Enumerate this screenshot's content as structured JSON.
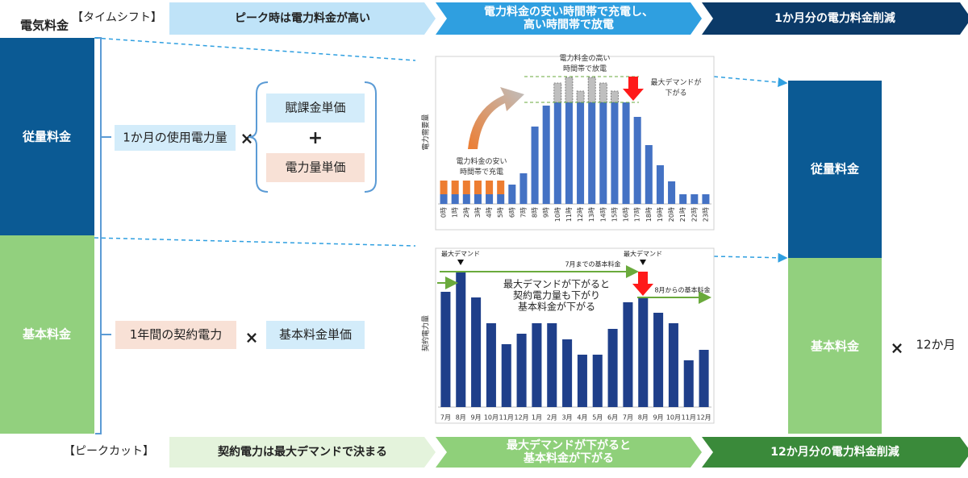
{
  "header": {
    "title": "電気料金",
    "timeshift": "【タイムシフト】",
    "peakcut": "【ピークカット】"
  },
  "timeshift_steps": [
    [
      "ピーク時は電力料金が高い"
    ],
    [
      "電力料金の安い時間帯で充電し、",
      "高い時間帯で放電"
    ],
    [
      "1か月分の電力料金削減"
    ]
  ],
  "peakcut_steps": [
    [
      "契約電力は最大デマンドで決まる"
    ],
    [
      "最大デマンドが下がると",
      "基本料金が下がる"
    ],
    [
      "12か月分の電力料金削減"
    ]
  ],
  "left": {
    "usage_charge": "従量料金",
    "basic_charge": "基本料金"
  },
  "formula": {
    "usage": "1か月の使用電力量",
    "times1": "×",
    "surcharge": "賦課金単価",
    "plus": "+",
    "energy_rate": "電力量単価",
    "contract": "1年間の契約電力",
    "times2": "×",
    "basic_rate": "基本料金単価"
  },
  "right": {
    "usage_charge": "従量料金",
    "basic_charge": "基本料金",
    "times": "×",
    "months": "12か月"
  },
  "chart_data": [
    {
      "type": "bar",
      "ylabel": "電力需要量",
      "categories": [
        "0時",
        "1時",
        "2時",
        "3時",
        "4時",
        "5時",
        "6時",
        "7時",
        "8時",
        "9時",
        "10時",
        "11時",
        "12時",
        "13時",
        "14時",
        "15時",
        "16時",
        "17時",
        "18時",
        "19時",
        "20時",
        "21時",
        "22時",
        "23時"
      ],
      "series": [
        {
          "color": "#4472c4",
          "values": [
            12,
            12,
            12,
            12,
            12,
            12,
            24,
            38,
            96,
            122,
            126,
            126,
            126,
            126,
            126,
            126,
            126,
            108,
            73,
            48,
            28,
            12,
            12,
            12
          ]
        },
        {
          "color": "#ed7d31",
          "values": [
            17,
            17,
            17,
            17,
            17,
            17,
            null,
            null,
            null,
            null,
            null,
            null,
            null,
            null,
            null,
            null,
            null,
            null,
            null,
            null,
            null,
            null,
            null,
            null
          ]
        },
        {
          "color": "#bfbfbf",
          "values": [
            null,
            null,
            null,
            null,
            null,
            null,
            null,
            null,
            null,
            null,
            24,
            31,
            14,
            31,
            24,
            14,
            null,
            null,
            null,
            null,
            null,
            null,
            null,
            null
          ]
        }
      ],
      "ylim": [
        0,
        178
      ],
      "annotations": [
        [
          "電力料金の高い",
          "時間帯で放電"
        ],
        [
          "最大デマンドが",
          "下がる"
        ],
        [
          "電力料金の安い",
          "時間帯で充電"
        ]
      ]
    },
    {
      "type": "bar",
      "ylabel": "契約電力量",
      "categories": [
        "7月",
        "8月",
        "9月",
        "10月",
        "11月",
        "12月",
        "1月",
        "2月",
        "3月",
        "4月",
        "5月",
        "6月",
        "7月",
        "8月",
        "9月",
        "10月",
        "11月",
        "12月"
      ],
      "series": [
        {
          "color": "#1f3f8a",
          "values": [
            143,
            168,
            136,
            104,
            78,
            91,
            104,
            104,
            84,
            65,
            65,
            97,
            130,
            136,
            117,
            104,
            58,
            71
          ]
        }
      ],
      "ylim": [
        0,
        183
      ],
      "annotations": [
        [
          "最大デマンド"
        ],
        [
          "最大デマンド"
        ],
        [
          "7月までの基本料金"
        ],
        [
          "8月からの基本料金"
        ],
        [
          "最大デマンドが下がると",
          "契約電力量も下がり",
          "基本料金が下がる"
        ]
      ]
    }
  ]
}
